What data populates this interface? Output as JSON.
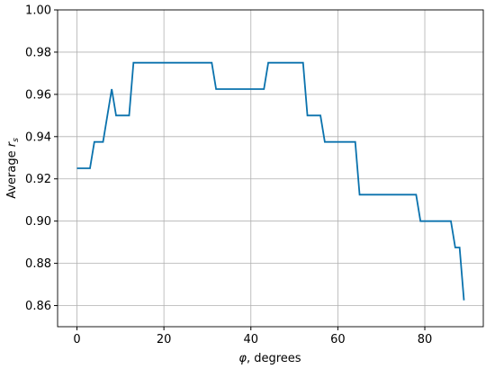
{
  "chart_data": {
    "type": "line",
    "xlabel_symbol": "φ",
    "xlabel": ", degrees",
    "ylabel": "Average ",
    "ylabel_symbol": "r",
    "ylabel_subscript": "s",
    "x": [
      0,
      3,
      4,
      6,
      8,
      9,
      12,
      13,
      31,
      32,
      43,
      44,
      52,
      53,
      56,
      57,
      64,
      65,
      78,
      79,
      86,
      87,
      88,
      89
    ],
    "series": [
      {
        "color": "#0a72ad",
        "values": [
          0.925,
          0.925,
          0.9375,
          0.9375,
          0.9625,
          0.95,
          0.95,
          0.975,
          0.975,
          0.9625,
          0.9625,
          0.975,
          0.975,
          0.95,
          0.95,
          0.9375,
          0.9375,
          0.9125,
          0.9125,
          0.9,
          0.9,
          0.8875,
          0.8875,
          0.8625
        ]
      }
    ],
    "xlim": [
      -4.45,
      93.45
    ],
    "xticks": [
      0,
      20,
      40,
      60,
      80
    ],
    "ylim": [
      0.85,
      1.0
    ],
    "yticks": [
      {
        "value": 0.86,
        "label": "0.86"
      },
      {
        "value": 0.88,
        "label": "0.88"
      },
      {
        "value": 0.9,
        "label": "0.90"
      },
      {
        "value": 0.92,
        "label": "0.92"
      },
      {
        "value": 0.94,
        "label": "0.94"
      },
      {
        "value": 0.96,
        "label": "0.96"
      },
      {
        "value": 0.98,
        "label": "0.98"
      },
      {
        "value": 1.0,
        "label": "1.00"
      }
    ],
    "grid": true
  }
}
